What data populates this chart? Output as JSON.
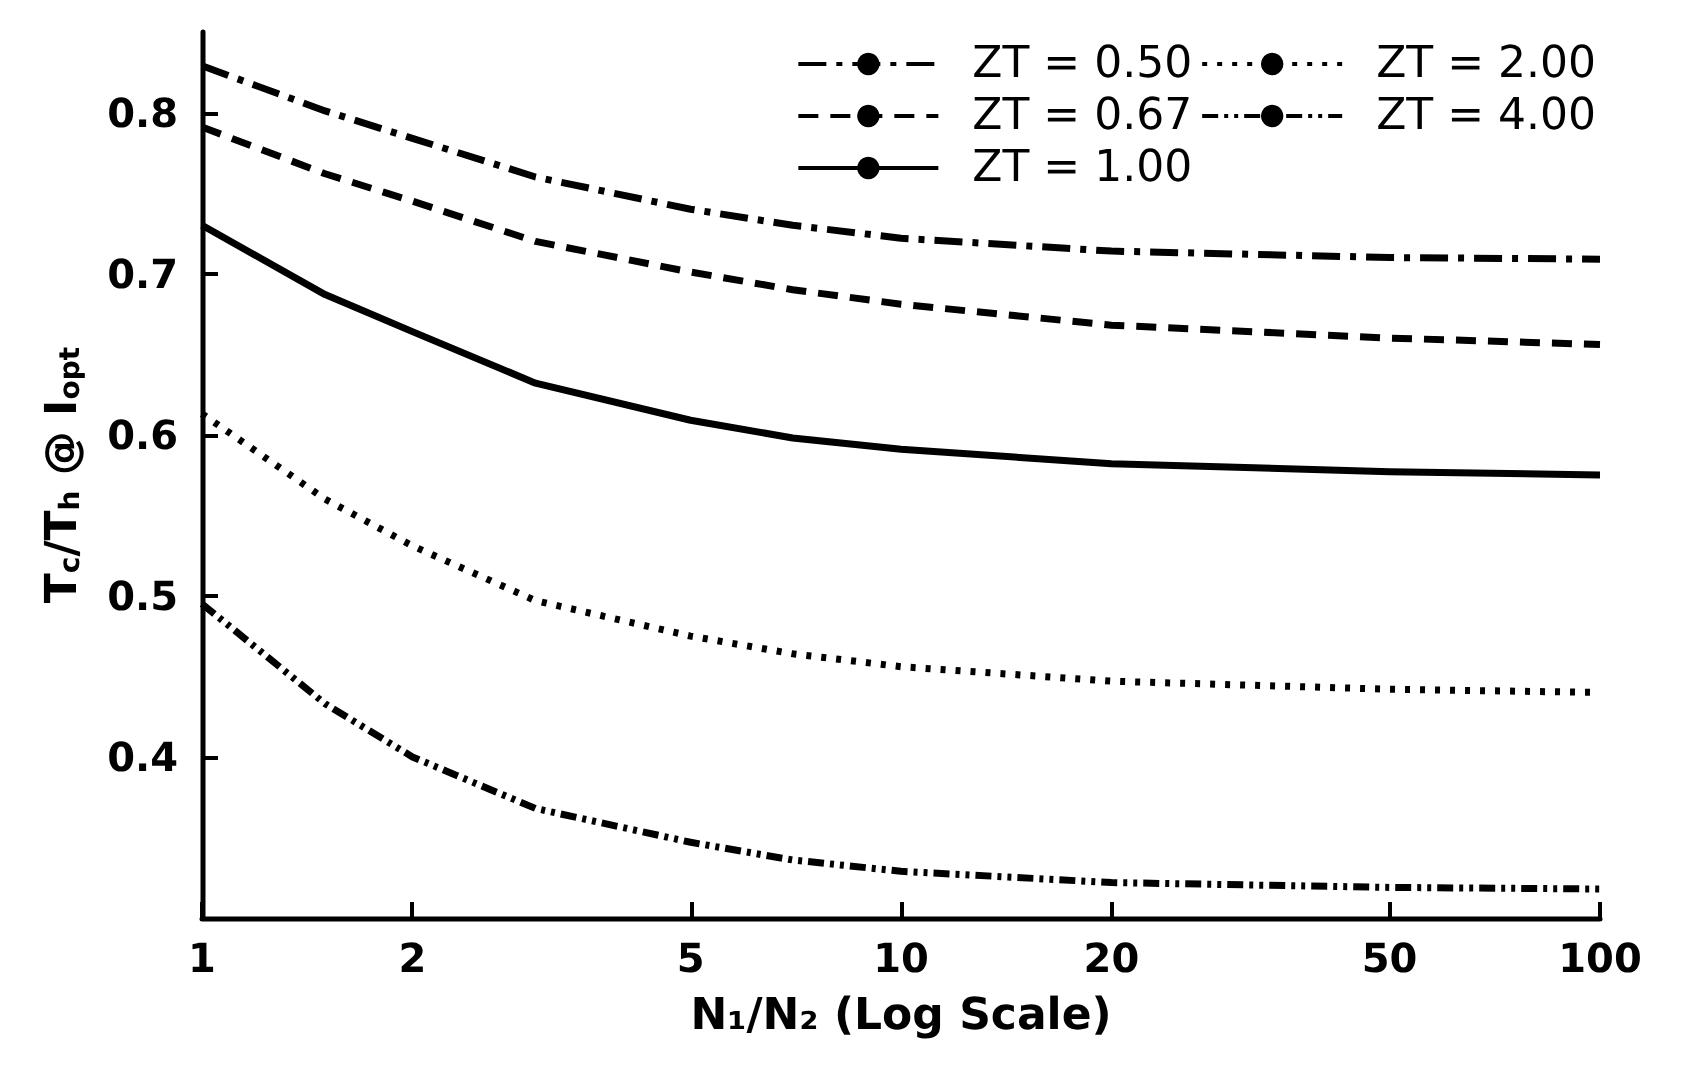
{
  "chart_data": {
    "type": "line",
    "xlabel": "N₁/N₂ (Log Scale)",
    "ylabel": "T$_{c}$/T$_{h}$ @ I$_{opt}$",
    "log": "x",
    "x": [
      1,
      1.5,
      2,
      3,
      5,
      7,
      10,
      20,
      50,
      100
    ],
    "xlim": [
      1,
      100
    ],
    "xticks": [
      1,
      2,
      5,
      10,
      20,
      50,
      100
    ],
    "ylim": [
      0.3,
      0.85
    ],
    "yticks": [
      0.4,
      0.5,
      0.6,
      0.7,
      0.8
    ],
    "grid": false,
    "legend": "top right",
    "marker": "none",
    "series": [
      {
        "name": "ZT = 0.50",
        "color": "#000000",
        "line_style": "dashdot",
        "values": [
          0.829,
          0.801,
          0.784,
          0.76,
          0.74,
          0.73,
          0.722,
          0.714,
          0.71,
          0.709
        ]
      },
      {
        "name": "ZT = 0.67",
        "color": "#000000",
        "line_style": "dashed",
        "values": [
          0.791,
          0.762,
          0.745,
          0.72,
          0.701,
          0.69,
          0.681,
          0.668,
          0.66,
          0.656
        ]
      },
      {
        "name": "ZT = 1.00",
        "color": "#000000",
        "line_style": "solid",
        "values": [
          0.73,
          0.687,
          0.664,
          0.632,
          0.609,
          0.598,
          0.591,
          0.582,
          0.577,
          0.575
        ]
      },
      {
        "name": "ZT = 2.00",
        "color": "#000000",
        "line_style": "dotted",
        "values": [
          0.613,
          0.56,
          0.531,
          0.497,
          0.475,
          0.464,
          0.456,
          0.447,
          0.442,
          0.44
        ]
      },
      {
        "name": "ZT = 4.00",
        "color": "#000000",
        "line_style": "dashdotdot",
        "values": [
          0.495,
          0.433,
          0.4,
          0.368,
          0.347,
          0.336,
          0.329,
          0.322,
          0.319,
          0.318
        ]
      }
    ]
  }
}
